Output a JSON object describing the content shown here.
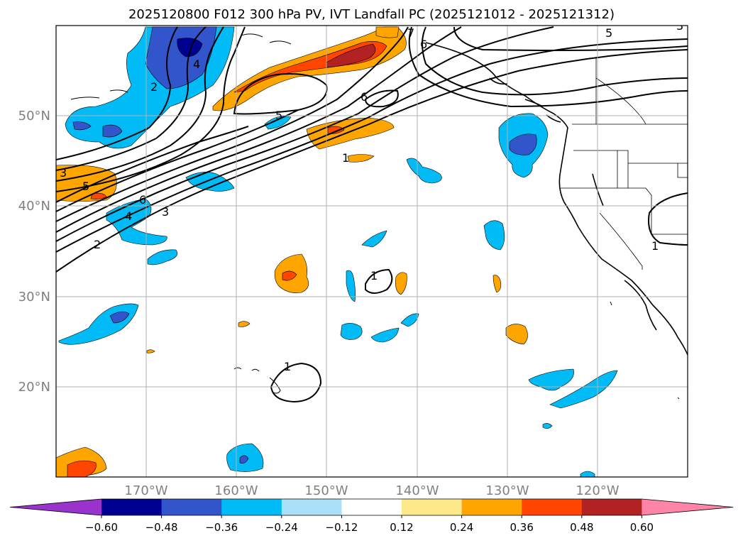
{
  "title": "2025120800 F012 300 hPa PV, IVT Landfall PC (2025121012 - 2025121312)",
  "axes": {
    "lon_labels": [
      "170°W",
      "160°W",
      "150°W",
      "140°W",
      "130°W",
      "120°W"
    ],
    "lat_labels": [
      "50°N",
      "40°N",
      "30°N",
      "20°N"
    ]
  },
  "colorbar": {
    "ticks": [
      "−0.60",
      "−0.48",
      "−0.36",
      "−0.24",
      "−0.12",
      "0.12",
      "0.24",
      "0.36",
      "0.48",
      "0.60"
    ],
    "colors": [
      "#9933cc",
      "#000090",
      "#3355cc",
      "#00bbf5",
      "#aae0f5",
      "#ffffff",
      "#fde98a",
      "#ffa500",
      "#ff4500",
      "#b22222",
      "#ff85a8"
    ]
  },
  "contour_labels": [
    "1",
    "2",
    "3",
    "4",
    "5",
    "6",
    "7",
    "5",
    "6",
    "6",
    "5",
    "1",
    "3",
    "5",
    "6",
    "4",
    "3",
    "2",
    "1",
    "1",
    "1"
  ]
}
